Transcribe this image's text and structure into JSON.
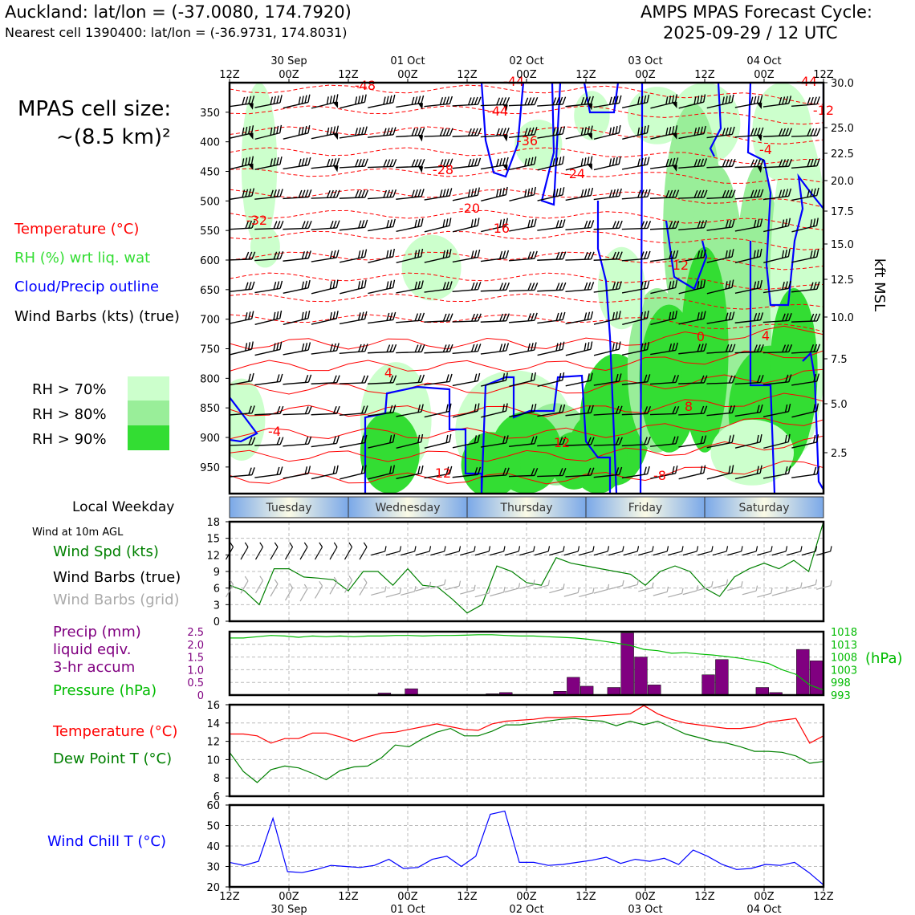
{
  "header": {
    "location_line": "Auckland: lat/lon = (-37.0080, 174.7920)",
    "cell_line": "Nearest cell 1390400: lat/lon = (-36.9731, 174.8031)",
    "cycle_title": "AMPS MPAS Forecast Cycle:",
    "cycle_time": "2025-09-29 / 12 UTC",
    "cell_size_1": "MPAS cell size:",
    "cell_size_2": "~(8.5 km)²"
  },
  "colors": {
    "temperature": "#ff0000",
    "rh": "#2ccc2c",
    "cloud": "#0000ff",
    "wind": "#000000",
    "wind_grid": "#aaaaaa",
    "wind_speed": "#008000",
    "precip": "#800080",
    "pressure": "#00bb00",
    "dewpoint": "#008000",
    "wind_chill": "#0000ff",
    "rh70": "#ccffcc",
    "rh80": "#99ee99",
    "rh90": "#33dd33"
  },
  "legend": {
    "temperature": "Temperature (°C)",
    "rh": "RH (%) wrt liq. wat",
    "cloud": "Cloud/Precip outline",
    "wind": "Wind Barbs (kts) (true)",
    "rh70": "RH > 70%",
    "rh80": "RH > 80%",
    "rh90": "RH > 90%"
  },
  "time_axis": {
    "top_labels": [
      "12Z",
      "00Z",
      "12Z",
      "00Z",
      "12Z",
      "00Z",
      "12Z",
      "00Z",
      "12Z",
      "00Z",
      "12Z"
    ],
    "date_labels": [
      "30 Sep",
      "01 Oct",
      "02 Oct",
      "03 Oct",
      "04 Oct"
    ],
    "weekday_title": "Local Weekday",
    "weekdays": [
      "Tuesday",
      "Wednesday",
      "Thursday",
      "Friday",
      "Saturday"
    ]
  },
  "chart_data": [
    {
      "type": "heatmap",
      "name": "cross-section",
      "y_left_label": "",
      "y_left_ticks": [
        350,
        400,
        450,
        500,
        550,
        600,
        650,
        700,
        750,
        800,
        850,
        900,
        950
      ],
      "y_right_label": "kft MSL",
      "y_right_ticks": [
        "30.0",
        "25.0",
        "22.5",
        "20.0",
        "17.5",
        "15.0",
        "12.5",
        "10.0",
        "7.5",
        "5.0",
        "2.5"
      ],
      "temperature_labels": [
        "-48",
        "-44",
        "-44",
        "-36",
        "-28",
        "-24",
        "-20",
        "-16",
        "-12",
        "-8",
        "-4",
        "0",
        "4",
        "4",
        "8",
        "12",
        "12",
        "-4",
        "-12",
        "-32",
        "-44"
      ]
    },
    {
      "type": "line",
      "name": "wind-10m",
      "title": "Wind at 10m AGL",
      "series_labels": [
        "Wind Spd (kts)",
        "Wind Barbs (true)",
        "Wind Barbs (grid)"
      ],
      "ylim": [
        0,
        18
      ],
      "y_ticks": [
        "0",
        "3",
        "6",
        "9",
        "12",
        "15",
        "18"
      ],
      "series": [
        {
          "name": "Wind Spd (kts)",
          "values": [
            6.5,
            5.5,
            3,
            9.5,
            9.5,
            8,
            7.8,
            7.5,
            5.5,
            9,
            9,
            6.5,
            9.5,
            6.5,
            6.2,
            4,
            1.5,
            3,
            10,
            9,
            7,
            6.5,
            11.5,
            10.5,
            10,
            9.5,
            9,
            8.5,
            6.5,
            9,
            10,
            9,
            6,
            4.5,
            8,
            9.5,
            10.5,
            9.5,
            11,
            9,
            18
          ]
        }
      ]
    },
    {
      "type": "bar",
      "name": "precip-pressure",
      "series_labels": [
        "Precip (mm)",
        "liquid eqiv.",
        "3-hr accum",
        "Pressure (hPa)"
      ],
      "y_left_ticks": [
        "0",
        "0.5",
        "1.0",
        "1.5",
        "2.0",
        "2.5"
      ],
      "y_right_ticks": [
        "993",
        "998",
        "1003",
        "1008",
        "1013",
        "1018"
      ],
      "y_right_label": "(hPa)",
      "ylim": [
        0,
        2.5
      ],
      "y2lim": [
        993,
        1018
      ],
      "precip": [
        0,
        0,
        0,
        0,
        0,
        0,
        0,
        0,
        0,
        0,
        0,
        0.08,
        0,
        0.25,
        0,
        0,
        0,
        0,
        0,
        0.05,
        0.1,
        0,
        0,
        0,
        0.15,
        0.7,
        0.35,
        0,
        0.3,
        2.45,
        1.5,
        0.4,
        0,
        0,
        0,
        0.8,
        1.4,
        0,
        0,
        0.3,
        0.1,
        0,
        1.8,
        1.35
      ],
      "pressure": [
        1015.5,
        1015.5,
        1016,
        1016.5,
        1016.3,
        1015.8,
        1016.3,
        1016,
        1016.3,
        1016,
        1016.3,
        1016.3,
        1016.5,
        1016.5,
        1016.3,
        1016.5,
        1016.5,
        1016.6,
        1016.8,
        1016.8,
        1016.5,
        1016.3,
        1016.3,
        1016,
        1015.8,
        1015.5,
        1015,
        1014.3,
        1013.5,
        1012.6,
        1011,
        1010.5,
        1009.5,
        1009.7,
        1009.2,
        1008.8,
        1008.2,
        1007.5,
        1006.5,
        1005.5,
        1003,
        1001.2,
        997,
        995
      ]
    },
    {
      "type": "line",
      "name": "temp-dewpoint",
      "series_labels": [
        "Temperature (°C)",
        "Dew Point T (°C)"
      ],
      "ylim": [
        6,
        16
      ],
      "y_ticks": [
        "6",
        "8",
        "10",
        "12",
        "14",
        "16"
      ],
      "series": [
        {
          "name": "Temperature (°C)",
          "values": [
            12.8,
            12.8,
            12.6,
            11.8,
            12.3,
            12.3,
            12.9,
            12.9,
            12.5,
            12,
            12.5,
            12.9,
            13,
            13.3,
            13.6,
            13.9,
            13.6,
            13.3,
            13.2,
            13.9,
            14.2,
            14.3,
            14.4,
            14.6,
            14.6,
            14.7,
            14.7,
            14.8,
            14.9,
            15,
            15.9,
            15,
            14.4,
            14,
            13.8,
            13.6,
            13.4,
            13.4,
            13.6,
            14.1,
            14.3,
            14.5,
            11.8,
            12.6
          ]
        },
        {
          "name": "Dew Point T (°C)",
          "values": [
            10.8,
            8.7,
            7.5,
            8.9,
            9.3,
            9.1,
            8.5,
            7.8,
            8.8,
            9.2,
            9.3,
            10.2,
            11.6,
            11.4,
            12.3,
            13,
            13.4,
            12.6,
            12.6,
            13.1,
            13.8,
            13.8,
            14,
            14.2,
            14.4,
            14.5,
            14.3,
            14.2,
            13.7,
            14.2,
            13.8,
            14.2,
            13.5,
            12.8,
            12.4,
            12,
            11.8,
            11.4,
            10.9,
            10.9,
            10.8,
            10.4,
            9.6,
            9.8
          ]
        }
      ]
    },
    {
      "type": "line",
      "name": "wind-chill",
      "series_labels": [
        "Wind Chill T (°C)"
      ],
      "ylim": [
        20,
        60
      ],
      "y_ticks": [
        "20",
        "30",
        "40",
        "50",
        "60"
      ],
      "series": [
        {
          "name": "Wind Chill T (°C)",
          "values": [
            32,
            30.5,
            32.5,
            53.5,
            27.5,
            27,
            28.5,
            30.5,
            30,
            29.5,
            30.5,
            33.5,
            29,
            29.5,
            33.5,
            35,
            30,
            35,
            55.5,
            57,
            32,
            32,
            30.5,
            31,
            32,
            33,
            34.5,
            31.5,
            33.5,
            32.5,
            34,
            31,
            38,
            35,
            31,
            28.5,
            29,
            31,
            30.5,
            32,
            27,
            21
          ]
        }
      ]
    }
  ]
}
